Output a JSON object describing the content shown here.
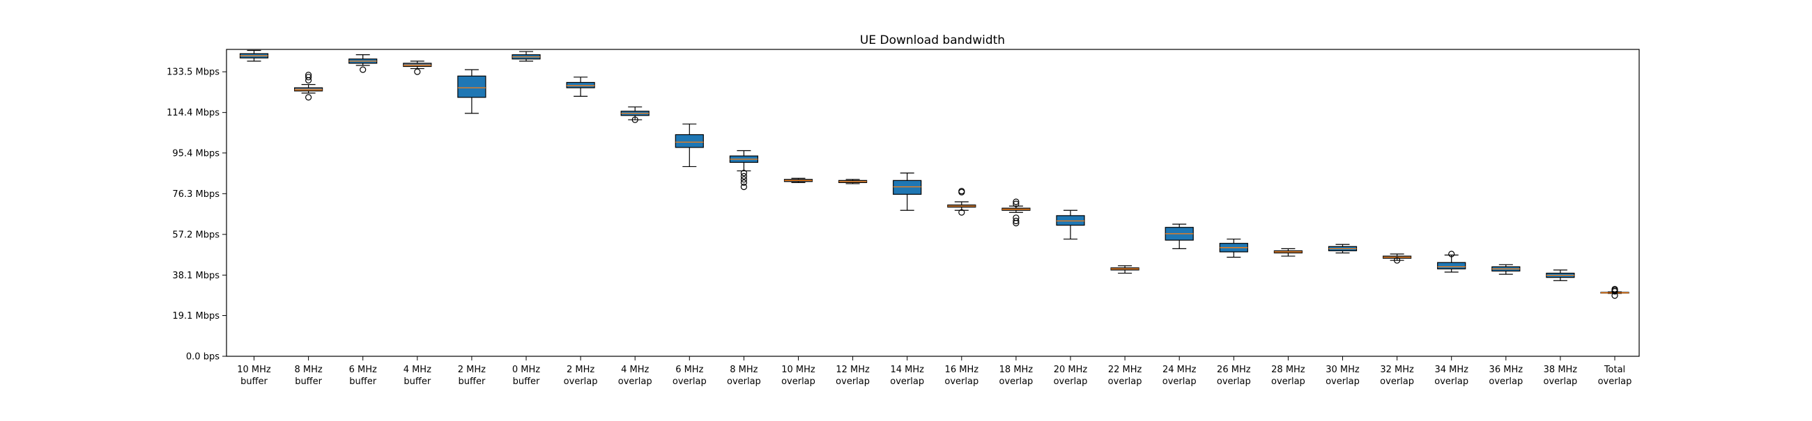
{
  "chart_data": {
    "type": "box",
    "title": "UE Download bandwidth",
    "xlabel": "",
    "ylabel": "",
    "ylim": [
      0,
      144
    ],
    "y_tick_values": [
      0,
      19.1,
      38.1,
      57.2,
      76.3,
      95.4,
      114.4,
      133.5
    ],
    "y_tick_labels": [
      "0.0 bps",
      "19.1 Mbps",
      "38.1 Mbps",
      "57.2 Mbps",
      "76.3 Mbps",
      "95.4 Mbps",
      "114.4 Mbps",
      "133.5 Mbps"
    ],
    "categories": [
      [
        "10 MHz",
        "buffer"
      ],
      [
        "8 MHz",
        "buffer"
      ],
      [
        "6 MHz",
        "buffer"
      ],
      [
        "4 MHz",
        "buffer"
      ],
      [
        "2 MHz",
        "buffer"
      ],
      [
        "0 MHz",
        "buffer"
      ],
      [
        "2 MHz",
        "overlap"
      ],
      [
        "4 MHz",
        "overlap"
      ],
      [
        "6 MHz",
        "overlap"
      ],
      [
        "8 MHz",
        "overlap"
      ],
      [
        "10 MHz",
        "overlap"
      ],
      [
        "12 MHz",
        "overlap"
      ],
      [
        "14 MHz",
        "overlap"
      ],
      [
        "16 MHz",
        "overlap"
      ],
      [
        "18 MHz",
        "overlap"
      ],
      [
        "20 MHz",
        "overlap"
      ],
      [
        "22 MHz",
        "overlap"
      ],
      [
        "24 MHz",
        "overlap"
      ],
      [
        "26 MHz",
        "overlap"
      ],
      [
        "28 MHz",
        "overlap"
      ],
      [
        "30 MHz",
        "overlap"
      ],
      [
        "32 MHz",
        "overlap"
      ],
      [
        "34 MHz",
        "overlap"
      ],
      [
        "36 MHz",
        "overlap"
      ],
      [
        "38 MHz",
        "overlap"
      ],
      [
        "Total",
        "overlap"
      ]
    ],
    "boxes": [
      {
        "whisker_low": 138.5,
        "q1": 140.0,
        "median": 141.0,
        "q3": 142.0,
        "whisker_high": 143.5,
        "outliers": []
      },
      {
        "whisker_low": 123.5,
        "q1": 124.5,
        "median": 125.0,
        "q3": 126.0,
        "whisker_high": 127.5,
        "outliers": [
          129.5,
          131.0,
          132.0,
          121.5
        ]
      },
      {
        "whisker_low": 136.5,
        "q1": 137.5,
        "median": 138.5,
        "q3": 139.5,
        "whisker_high": 141.5,
        "outliers": [
          134.5
        ]
      },
      {
        "whisker_low": 135.0,
        "q1": 136.0,
        "median": 136.5,
        "q3": 137.5,
        "whisker_high": 138.5,
        "outliers": [
          133.5
        ]
      },
      {
        "whisker_low": 114.0,
        "q1": 121.5,
        "median": 126.0,
        "q3": 131.5,
        "whisker_high": 134.5,
        "outliers": []
      },
      {
        "whisker_low": 138.5,
        "q1": 139.5,
        "median": 140.5,
        "q3": 141.5,
        "whisker_high": 143.0,
        "outliers": []
      },
      {
        "whisker_low": 122.0,
        "q1": 126.0,
        "median": 127.0,
        "q3": 128.5,
        "whisker_high": 131.0,
        "outliers": []
      },
      {
        "whisker_low": 111.0,
        "q1": 113.0,
        "median": 114.0,
        "q3": 115.0,
        "whisker_high": 117.0,
        "outliers": [
          111.0
        ]
      },
      {
        "whisker_low": 89.0,
        "q1": 98.0,
        "median": 100.5,
        "q3": 104.0,
        "whisker_high": 109.0,
        "outliers": []
      },
      {
        "whisker_low": 87.0,
        "q1": 91.0,
        "median": 92.5,
        "q3": 94.0,
        "whisker_high": 96.5,
        "outliers": [
          86.0,
          84.5,
          83.0,
          81.5,
          79.5
        ]
      },
      {
        "whisker_low": 81.5,
        "q1": 82.0,
        "median": 82.5,
        "q3": 83.0,
        "whisker_high": 83.5,
        "outliers": []
      },
      {
        "whisker_low": 81.0,
        "q1": 81.5,
        "median": 82.0,
        "q3": 82.5,
        "whisker_high": 83.0,
        "outliers": []
      },
      {
        "whisker_low": 68.5,
        "q1": 76.0,
        "median": 79.5,
        "q3": 82.5,
        "whisker_high": 86.0,
        "outliers": []
      },
      {
        "whisker_low": 68.5,
        "q1": 70.0,
        "median": 70.5,
        "q3": 71.0,
        "whisker_high": 72.5,
        "outliers": [
          77.5,
          77.0,
          67.5
        ]
      },
      {
        "whisker_low": 67.5,
        "q1": 68.5,
        "median": 69.0,
        "q3": 69.5,
        "whisker_high": 70.5,
        "outliers": [
          72.5,
          71.5,
          65.0,
          63.5,
          62.5
        ]
      },
      {
        "whisker_low": 55.0,
        "q1": 61.5,
        "median": 63.5,
        "q3": 66.0,
        "whisker_high": 68.5,
        "outliers": []
      },
      {
        "whisker_low": 39.0,
        "q1": 40.5,
        "median": 41.0,
        "q3": 41.5,
        "whisker_high": 42.5,
        "outliers": []
      },
      {
        "whisker_low": 50.5,
        "q1": 54.5,
        "median": 57.5,
        "q3": 60.5,
        "whisker_high": 62.0,
        "outliers": []
      },
      {
        "whisker_low": 46.5,
        "q1": 49.0,
        "median": 51.0,
        "q3": 53.0,
        "whisker_high": 55.0,
        "outliers": []
      },
      {
        "whisker_low": 47.0,
        "q1": 48.5,
        "median": 49.0,
        "q3": 49.5,
        "whisker_high": 50.5,
        "outliers": []
      },
      {
        "whisker_low": 48.5,
        "q1": 49.5,
        "median": 50.5,
        "q3": 51.5,
        "whisker_high": 52.5,
        "outliers": []
      },
      {
        "whisker_low": 45.0,
        "q1": 46.0,
        "median": 46.5,
        "q3": 47.0,
        "whisker_high": 48.0,
        "outliers": [
          45.0
        ]
      },
      {
        "whisker_low": 39.5,
        "q1": 41.0,
        "median": 42.0,
        "q3": 44.0,
        "whisker_high": 47.5,
        "outliers": [
          48.0
        ]
      },
      {
        "whisker_low": 38.5,
        "q1": 40.0,
        "median": 41.0,
        "q3": 42.0,
        "whisker_high": 43.0,
        "outliers": []
      },
      {
        "whisker_low": 35.5,
        "q1": 37.0,
        "median": 38.0,
        "q3": 39.0,
        "whisker_high": 40.5,
        "outliers": []
      },
      {
        "whisker_low": 29.5,
        "q1": 29.7,
        "median": 29.8,
        "q3": 30.0,
        "whisker_high": 30.2,
        "outliers": [
          31.5,
          31.0,
          30.5,
          28.5
        ]
      }
    ],
    "colors": {
      "box_wide": "#1f77b4",
      "box_narrow": "#6b7f91",
      "median": "#ff7f0e",
      "outline": "#000000"
    },
    "grid": false,
    "legend": "none"
  }
}
